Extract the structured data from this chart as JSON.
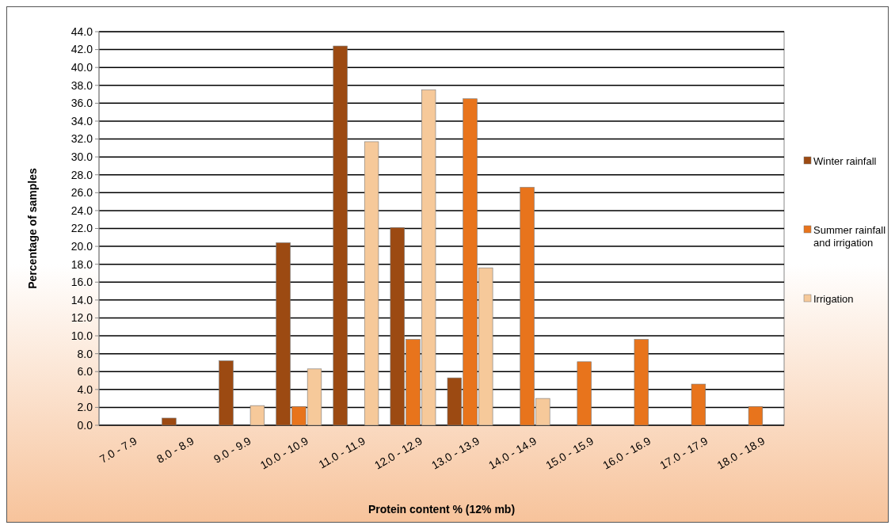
{
  "chart_data": {
    "type": "bar",
    "xlabel": "Protein content % (12% mb)",
    "ylabel": "Percentage of samples",
    "categories": [
      "7.0 - 7.9",
      "8.0 - 8.9",
      "9.0 - 9.9",
      "10.0 - 10.9",
      "11.0 - 11.9",
      "12.0 - 12.9",
      "13.0 - 13.9",
      "14.0 - 14.9",
      "15.0 - 15.9",
      "16.0 - 16.9",
      "17.0 - 17.9",
      "18.0 - 18.9"
    ],
    "series": [
      {
        "name": "Winter rainfall",
        "color": "#9c4a12",
        "values": [
          0,
          0.8,
          7.2,
          20.4,
          42.4,
          22.1,
          5.3,
          0,
          0,
          0,
          0,
          0
        ]
      },
      {
        "name": "Summer rainfall and irrigation",
        "color": "#e8741c",
        "values": [
          0,
          0,
          0,
          2.1,
          0,
          9.6,
          36.5,
          26.6,
          7.1,
          9.6,
          4.6,
          2.1
        ]
      },
      {
        "name": "Irrigation",
        "color": "#f6c99a",
        "values": [
          0,
          0,
          2.2,
          6.3,
          31.7,
          37.5,
          17.6,
          3.0,
          0,
          0,
          0,
          0
        ]
      }
    ],
    "ylim": [
      0,
      44
    ],
    "yticks": [
      {
        "value": 0,
        "label": "0.0"
      },
      {
        "value": 2,
        "label": "2.0"
      },
      {
        "value": 4,
        "label": "4.0"
      },
      {
        "value": 6,
        "label": "6.0"
      },
      {
        "value": 8,
        "label": "8.0"
      },
      {
        "value": 10,
        "label": "10.0"
      },
      {
        "value": 12,
        "label": "12.0"
      },
      {
        "value": 14,
        "label": "14.0"
      },
      {
        "value": 16,
        "label": "16.0"
      },
      {
        "value": 18,
        "label": "18.0"
      },
      {
        "value": 20,
        "label": "20.0"
      },
      {
        "value": 22,
        "label": "22.0"
      },
      {
        "value": 24,
        "label": "24.0"
      },
      {
        "value": 26,
        "label": "26.0"
      },
      {
        "value": 28,
        "label": "28.0"
      },
      {
        "value": 30,
        "label": "30.0"
      },
      {
        "value": 32,
        "label": "32.0"
      },
      {
        "value": 34,
        "label": "34.0"
      },
      {
        "value": 36,
        "label": "36.0"
      },
      {
        "value": 38,
        "label": "38.0"
      },
      {
        "value": 40,
        "label": "40.0"
      },
      {
        "value": 42,
        "label": "42.0"
      },
      {
        "value": 44,
        "label": "44.0"
      }
    ],
    "grid": "y",
    "legend": "right"
  }
}
